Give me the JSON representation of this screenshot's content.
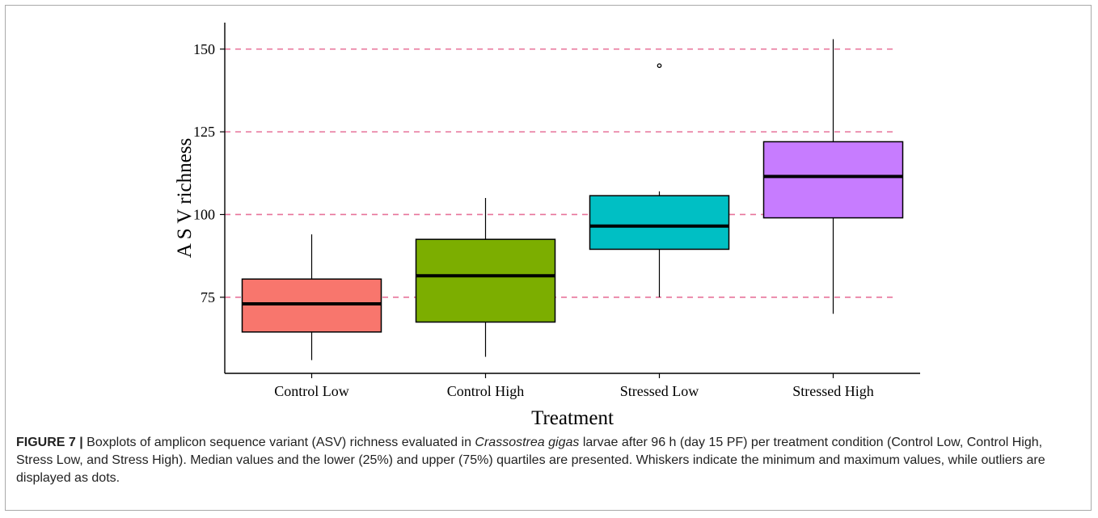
{
  "chart_data": {
    "type": "boxplot",
    "xlabel": "Treatment",
    "ylabel": "A S V  richness",
    "ylim": [
      52,
      158
    ],
    "yticks": [
      75,
      100,
      125,
      150
    ],
    "reference_lines": [
      75,
      100,
      125,
      150
    ],
    "grid": "dashed horizontal reference lines at y ticks",
    "categories": [
      "Control Low",
      "Control High",
      "Stressed Low",
      "Stressed High"
    ],
    "boxes": [
      {
        "name": "Control Low",
        "min": 56,
        "q1": 64.5,
        "median": 73,
        "q3": 80.5,
        "max": 94,
        "outliers": [],
        "color": "#F8766D"
      },
      {
        "name": "Control High",
        "min": 57,
        "q1": 67.5,
        "median": 81.5,
        "q3": 92.5,
        "max": 105,
        "outliers": [],
        "color": "#7CAE00"
      },
      {
        "name": "Stressed Low",
        "min": 75,
        "q1": 89.5,
        "median": 96.5,
        "q3": 105.7,
        "max": 107,
        "outliers": [
          145
        ],
        "color": "#00BFC4"
      },
      {
        "name": "Stressed High",
        "min": 70,
        "q1": 99,
        "median": 111.5,
        "q3": 122,
        "max": 153,
        "outliers": [],
        "color": "#C77CFF"
      }
    ],
    "reference_line_color": "#E8739A"
  },
  "caption": {
    "label": "FIGURE 7 |",
    "text_before_species": " Boxplots of amplicon sequence variant (ASV) richness evaluated in ",
    "species": "Crassostrea gigas",
    "text_after_species": " larvae after 96 h (day 15 PF) per treatment condition (Control Low, Control High, Stress Low, and Stress High). Median values and the lower (25%) and upper (75%) quartiles are presented. Whiskers indicate the minimum and maximum values, while outliers are displayed as dots."
  }
}
